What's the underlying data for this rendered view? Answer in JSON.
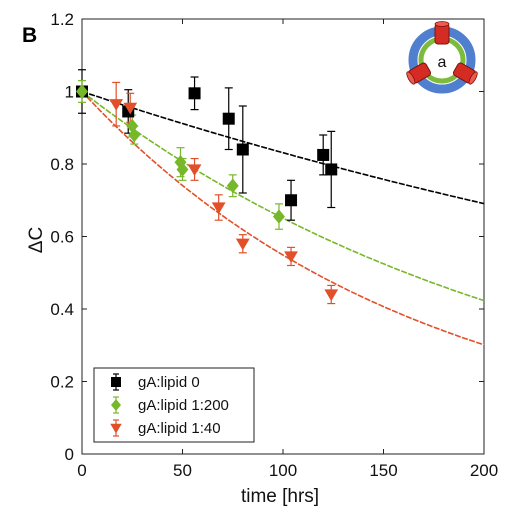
{
  "panel_label": "B",
  "inset_label": "a",
  "chart_data": {
    "type": "scatter",
    "xlabel": "time [hrs]",
    "ylabel": "ΔC",
    "xlim": [
      0,
      200
    ],
    "ylim": [
      0,
      1.2
    ],
    "xticks": [
      0,
      50,
      100,
      150,
      200
    ],
    "yticks": [
      0,
      0.2,
      0.4,
      0.6,
      0.8,
      1,
      1.2
    ],
    "xtick_labels": [
      "0",
      "50",
      "100",
      "150",
      "200"
    ],
    "ytick_labels": [
      "0",
      "0.2",
      "0.4",
      "0.6",
      "0.8",
      "1",
      "1.2"
    ],
    "grid": false,
    "legend_position": "bottom-left",
    "series": [
      {
        "name": "gA:lipid 0",
        "color": "#000000",
        "marker": "square",
        "fit_k": 0.00185,
        "points": [
          {
            "x": 0,
            "y": 1.0,
            "err": 0.06
          },
          {
            "x": 23,
            "y": 0.945,
            "err": 0.06
          },
          {
            "x": 56,
            "y": 0.995,
            "err": 0.045
          },
          {
            "x": 73,
            "y": 0.925,
            "err": 0.085
          },
          {
            "x": 80,
            "y": 0.84,
            "err": 0.12
          },
          {
            "x": 104,
            "y": 0.7,
            "err": 0.055
          },
          {
            "x": 120,
            "y": 0.825,
            "err": 0.055
          },
          {
            "x": 124,
            "y": 0.785,
            "err": 0.105
          }
        ]
      },
      {
        "name": "gA:lipid 1:200",
        "color": "#77b82a",
        "marker": "diamond",
        "fit_k": 0.0043,
        "points": [
          {
            "x": 0,
            "y": 1.0,
            "err": 0.03
          },
          {
            "x": 25,
            "y": 0.905,
            "err": 0.03
          },
          {
            "x": 26,
            "y": 0.88,
            "err": 0.025
          },
          {
            "x": 49,
            "y": 0.805,
            "err": 0.04
          },
          {
            "x": 50,
            "y": 0.785,
            "err": 0.03
          },
          {
            "x": 75,
            "y": 0.74,
            "err": 0.03
          },
          {
            "x": 98,
            "y": 0.655,
            "err": 0.035
          }
        ]
      },
      {
        "name": "gA:lipid 1:40",
        "color": "#e2502a",
        "marker": "triangle-down",
        "fit_k": 0.006,
        "points": [
          {
            "x": 17,
            "y": 0.965,
            "err": 0.06
          },
          {
            "x": 24,
            "y": 0.955,
            "err": 0.04
          },
          {
            "x": 56,
            "y": 0.785,
            "err": 0.03
          },
          {
            "x": 68,
            "y": 0.68,
            "err": 0.035
          },
          {
            "x": 80,
            "y": 0.58,
            "err": 0.025
          },
          {
            "x": 104,
            "y": 0.545,
            "err": 0.025
          },
          {
            "x": 124,
            "y": 0.44,
            "err": 0.025
          }
        ]
      }
    ]
  },
  "inset_colors": {
    "outer_ring": "#4f7fce",
    "inner_ring": "#7dbb3c",
    "channel": "#d42c22"
  }
}
